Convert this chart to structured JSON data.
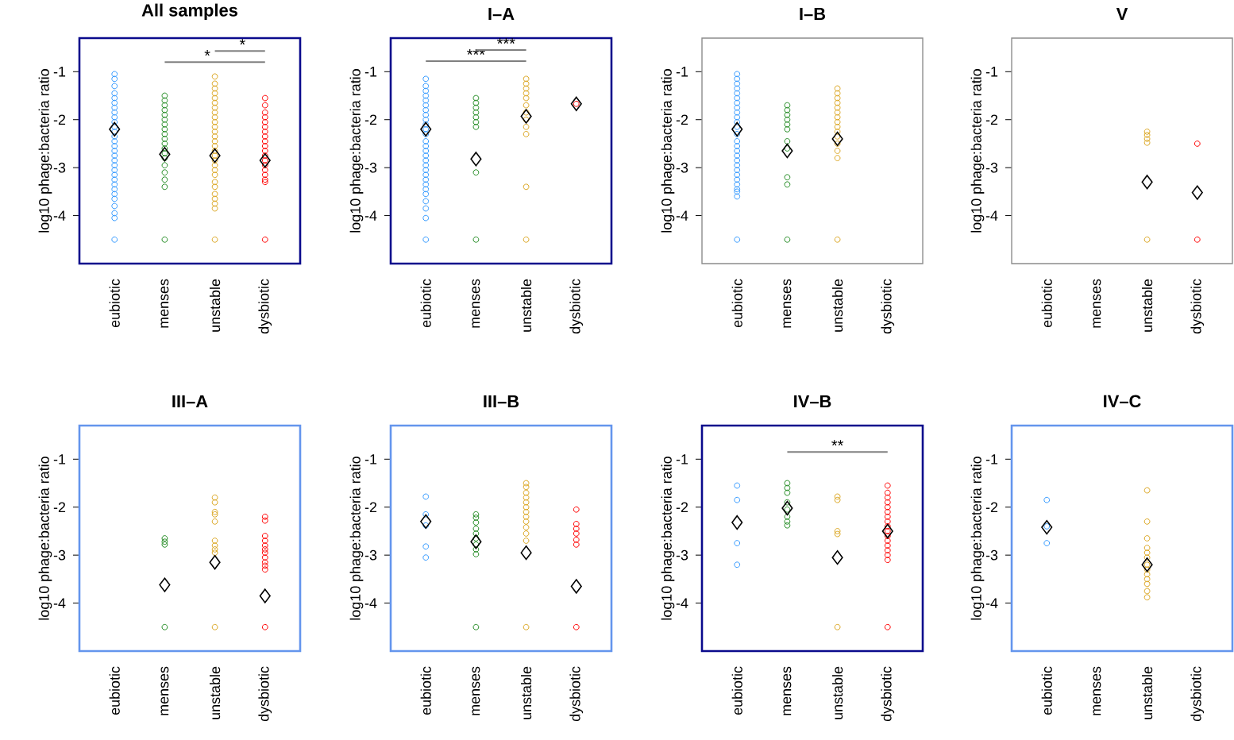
{
  "chart_data": [
    {
      "type": "scatter",
      "title": "All samples",
      "ylabel": "log10 phage:bacteria ratio",
      "categories": [
        "eubiotic",
        "menses",
        "unstable",
        "dysbiotic"
      ],
      "ylim": [
        -5,
        -0.3
      ],
      "yticks": [
        -1,
        -2,
        -3,
        -4
      ],
      "annotations": [
        "*",
        "*"
      ],
      "series": [
        {
          "color": "#3399ff",
          "marker": "circle",
          "x": [
            "eubiotic",
            "eubiotic",
            "eubiotic",
            "eubiotic",
            "eubiotic",
            "eubiotic",
            "eubiotic",
            "eubiotic",
            "eubiotic",
            "eubiotic",
            "eubiotic",
            "eubiotic",
            "eubiotic",
            "eubiotic",
            "eubiotic",
            "eubiotic",
            "eubiotic",
            "eubiotic",
            "eubiotic",
            "eubiotic",
            "eubiotic",
            "eubiotic",
            "eubiotic",
            "eubiotic",
            "eubiotic",
            "eubiotic",
            "eubiotic",
            "eubiotic",
            "eubiotic",
            "eubiotic"
          ],
          "values": [
            -1.05,
            -1.15,
            -1.3,
            -1.45,
            -1.55,
            -1.65,
            -1.75,
            -1.85,
            -1.95,
            -2.05,
            -2.15,
            -2.25,
            -2.35,
            -2.45,
            -2.55,
            -2.65,
            -2.75,
            -2.85,
            -2.95,
            -3.05,
            -3.15,
            -3.25,
            -3.35,
            -3.45,
            -3.55,
            -3.65,
            -3.8,
            -3.95,
            -4.05,
            -4.5
          ]
        },
        {
          "color": "#228b22",
          "marker": "circle",
          "x": [
            "menses",
            "menses",
            "menses",
            "menses",
            "menses",
            "menses",
            "menses",
            "menses",
            "menses",
            "menses",
            "menses",
            "menses",
            "menses",
            "menses",
            "menses",
            "menses",
            "menses",
            "menses",
            "menses"
          ],
          "values": [
            -1.5,
            -1.6,
            -1.7,
            -1.8,
            -1.9,
            -2.0,
            -2.1,
            -2.2,
            -2.3,
            -2.4,
            -2.5,
            -2.6,
            -2.7,
            -2.8,
            -2.95,
            -3.1,
            -3.25,
            -3.4,
            -4.5
          ]
        },
        {
          "color": "#daa520",
          "marker": "circle",
          "x": [
            "unstable",
            "unstable",
            "unstable",
            "unstable",
            "unstable",
            "unstable",
            "unstable",
            "unstable",
            "unstable",
            "unstable",
            "unstable",
            "unstable",
            "unstable",
            "unstable",
            "unstable",
            "unstable",
            "unstable",
            "unstable",
            "unstable",
            "unstable",
            "unstable",
            "unstable",
            "unstable",
            "unstable",
            "unstable",
            "unstable",
            "unstable",
            "unstable"
          ],
          "values": [
            -1.1,
            -1.25,
            -1.35,
            -1.45,
            -1.55,
            -1.65,
            -1.75,
            -1.85,
            -1.95,
            -2.05,
            -2.15,
            -2.25,
            -2.35,
            -2.45,
            -2.55,
            -2.65,
            -2.75,
            -2.85,
            -2.95,
            -3.05,
            -3.15,
            -3.3,
            -3.4,
            -3.55,
            -3.65,
            -3.75,
            -3.85,
            -4.5
          ]
        },
        {
          "color": "#ff0000",
          "marker": "circle",
          "x": [
            "dysbiotic",
            "dysbiotic",
            "dysbiotic",
            "dysbiotic",
            "dysbiotic",
            "dysbiotic",
            "dysbiotic",
            "dysbiotic",
            "dysbiotic",
            "dysbiotic",
            "dysbiotic",
            "dysbiotic",
            "dysbiotic",
            "dysbiotic",
            "dysbiotic",
            "dysbiotic",
            "dysbiotic",
            "dysbiotic",
            "dysbiotic"
          ],
          "values": [
            -1.55,
            -1.7,
            -1.85,
            -1.95,
            -2.05,
            -2.15,
            -2.25,
            -2.35,
            -2.45,
            -2.55,
            -2.65,
            -2.75,
            -2.85,
            -2.95,
            -3.05,
            -3.15,
            -3.25,
            -3.3,
            -4.5
          ]
        },
        {
          "color": "#000000",
          "marker": "diamond",
          "x": [
            "eubiotic",
            "menses",
            "unstable",
            "dysbiotic"
          ],
          "values": [
            -2.2,
            -2.72,
            -2.75,
            -2.85
          ]
        }
      ]
    },
    {
      "type": "scatter",
      "title": "I–A",
      "ylabel": "log10 phage:bacteria ratio",
      "categories": [
        "eubiotic",
        "menses",
        "unstable",
        "dysbiotic"
      ],
      "ylim": [
        -5,
        -0.3
      ],
      "yticks": [
        -1,
        -2,
        -3,
        -4
      ],
      "annotations": [
        "***",
        "***"
      ],
      "series": [
        {
          "color": "#3399ff",
          "marker": "circle",
          "x": [
            "eubiotic",
            "eubiotic",
            "eubiotic",
            "eubiotic",
            "eubiotic",
            "eubiotic",
            "eubiotic",
            "eubiotic",
            "eubiotic",
            "eubiotic",
            "eubiotic",
            "eubiotic",
            "eubiotic",
            "eubiotic",
            "eubiotic",
            "eubiotic",
            "eubiotic",
            "eubiotic",
            "eubiotic",
            "eubiotic",
            "eubiotic",
            "eubiotic",
            "eubiotic",
            "eubiotic",
            "eubiotic",
            "eubiotic",
            "eubiotic",
            "eubiotic"
          ],
          "values": [
            -1.15,
            -1.3,
            -1.4,
            -1.5,
            -1.6,
            -1.7,
            -1.8,
            -1.9,
            -2.0,
            -2.1,
            -2.2,
            -2.3,
            -2.45,
            -2.55,
            -2.65,
            -2.75,
            -2.85,
            -2.95,
            -3.05,
            -3.15,
            -3.25,
            -3.35,
            -3.45,
            -3.55,
            -3.7,
            -3.85,
            -4.05,
            -4.5
          ]
        },
        {
          "color": "#228b22",
          "marker": "circle",
          "x": [
            "menses",
            "menses",
            "menses",
            "menses",
            "menses",
            "menses",
            "menses",
            "menses",
            "menses"
          ],
          "values": [
            -1.55,
            -1.65,
            -1.75,
            -1.85,
            -1.95,
            -2.05,
            -2.15,
            -3.1,
            -4.5
          ]
        },
        {
          "color": "#daa520",
          "marker": "circle",
          "x": [
            "unstable",
            "unstable",
            "unstable",
            "unstable",
            "unstable",
            "unstable",
            "unstable",
            "unstable",
            "unstable",
            "unstable",
            "unstable",
            "unstable"
          ],
          "values": [
            -1.15,
            -1.25,
            -1.35,
            -1.45,
            -1.55,
            -1.7,
            -1.85,
            -2.0,
            -2.15,
            -2.3,
            -3.4,
            -4.5
          ]
        },
        {
          "color": "#ff0000",
          "marker": "circle",
          "x": [
            "dysbiotic"
          ],
          "values": [
            -1.67
          ]
        },
        {
          "color": "#000000",
          "marker": "diamond",
          "x": [
            "eubiotic",
            "menses",
            "unstable",
            "dysbiotic"
          ],
          "values": [
            -2.2,
            -2.82,
            -1.93,
            -1.67
          ]
        }
      ]
    },
    {
      "type": "scatter",
      "title": "I–B",
      "ylabel": "log10 phage:bacteria ratio",
      "categories": [
        "eubiotic",
        "menses",
        "unstable",
        "dysbiotic"
      ],
      "ylim": [
        -5,
        -0.3
      ],
      "yticks": [
        -1,
        -2,
        -3,
        -4
      ],
      "series": [
        {
          "color": "#3399ff",
          "marker": "circle",
          "x": [
            "eubiotic",
            "eubiotic",
            "eubiotic",
            "eubiotic",
            "eubiotic",
            "eubiotic",
            "eubiotic",
            "eubiotic",
            "eubiotic",
            "eubiotic",
            "eubiotic",
            "eubiotic",
            "eubiotic",
            "eubiotic",
            "eubiotic",
            "eubiotic",
            "eubiotic",
            "eubiotic",
            "eubiotic",
            "eubiotic",
            "eubiotic",
            "eubiotic",
            "eubiotic",
            "eubiotic",
            "eubiotic",
            "eubiotic",
            "eubiotic"
          ],
          "values": [
            -1.05,
            -1.15,
            -1.25,
            -1.35,
            -1.45,
            -1.55,
            -1.65,
            -1.75,
            -1.85,
            -1.95,
            -2.05,
            -2.15,
            -2.3,
            -2.45,
            -2.55,
            -2.65,
            -2.75,
            -2.85,
            -2.95,
            -3.05,
            -3.15,
            -3.25,
            -3.35,
            -3.45,
            -3.5,
            -3.6,
            -4.5
          ]
        },
        {
          "color": "#228b22",
          "marker": "circle",
          "x": [
            "menses",
            "menses",
            "menses",
            "menses",
            "menses",
            "menses",
            "menses",
            "menses",
            "menses",
            "menses",
            "menses"
          ],
          "values": [
            -1.7,
            -1.8,
            -1.9,
            -2.0,
            -2.1,
            -2.2,
            -2.45,
            -2.6,
            -3.2,
            -3.35,
            -4.5
          ]
        },
        {
          "color": "#daa520",
          "marker": "circle",
          "x": [
            "unstable",
            "unstable",
            "unstable",
            "unstable",
            "unstable",
            "unstable",
            "unstable",
            "unstable",
            "unstable",
            "unstable",
            "unstable",
            "unstable",
            "unstable",
            "unstable",
            "unstable"
          ],
          "values": [
            -1.35,
            -1.45,
            -1.55,
            -1.65,
            -1.75,
            -1.85,
            -1.95,
            -2.05,
            -2.15,
            -2.25,
            -2.35,
            -2.5,
            -2.65,
            -2.8,
            -4.5
          ]
        },
        {
          "color": "#000000",
          "marker": "diamond",
          "x": [
            "eubiotic",
            "menses",
            "unstable"
          ],
          "values": [
            -2.2,
            -2.65,
            -2.4
          ]
        }
      ]
    },
    {
      "type": "scatter",
      "title": "V",
      "ylabel": "log10 phage:bacteria ratio",
      "categories": [
        "eubiotic",
        "menses",
        "unstable",
        "dysbiotic"
      ],
      "ylim": [
        -5,
        -0.3
      ],
      "yticks": [
        -1,
        -2,
        -3,
        -4
      ],
      "series": [
        {
          "color": "#daa520",
          "marker": "circle",
          "x": [
            "unstable",
            "unstable",
            "unstable",
            "unstable",
            "unstable"
          ],
          "values": [
            -2.25,
            -2.32,
            -2.4,
            -2.48,
            -4.5
          ]
        },
        {
          "color": "#ff0000",
          "marker": "circle",
          "x": [
            "dysbiotic",
            "dysbiotic"
          ],
          "values": [
            -2.5,
            -4.5
          ]
        },
        {
          "color": "#000000",
          "marker": "diamond",
          "x": [
            "unstable",
            "dysbiotic"
          ],
          "values": [
            -3.3,
            -3.52
          ]
        }
      ]
    },
    {
      "type": "scatter",
      "title": "III–A",
      "ylabel": "log10 phage:bacteria ratio",
      "categories": [
        "eubiotic",
        "menses",
        "unstable",
        "dysbiotic"
      ],
      "ylim": [
        -5,
        -0.3
      ],
      "yticks": [
        -1,
        -2,
        -3,
        -4
      ],
      "series": [
        {
          "color": "#228b22",
          "marker": "circle",
          "x": [
            "menses",
            "menses",
            "menses",
            "menses"
          ],
          "values": [
            -2.65,
            -2.72,
            -2.78,
            -4.5
          ]
        },
        {
          "color": "#daa520",
          "marker": "circle",
          "x": [
            "unstable",
            "unstable",
            "unstable",
            "unstable",
            "unstable",
            "unstable",
            "unstable",
            "unstable",
            "unstable",
            "unstable"
          ],
          "values": [
            -1.8,
            -1.9,
            -2.1,
            -2.15,
            -2.3,
            -2.7,
            -2.8,
            -2.88,
            -2.95,
            -4.5
          ]
        },
        {
          "color": "#ff0000",
          "marker": "circle",
          "x": [
            "dysbiotic",
            "dysbiotic",
            "dysbiotic",
            "dysbiotic",
            "dysbiotic",
            "dysbiotic",
            "dysbiotic",
            "dysbiotic",
            "dysbiotic",
            "dysbiotic",
            "dysbiotic",
            "dysbiotic"
          ],
          "values": [
            -2.2,
            -2.28,
            -2.6,
            -2.7,
            -2.8,
            -2.88,
            -2.95,
            -3.05,
            -3.15,
            -3.22,
            -3.3,
            -4.5
          ]
        },
        {
          "color": "#000000",
          "marker": "diamond",
          "x": [
            "menses",
            "unstable",
            "dysbiotic"
          ],
          "values": [
            -3.62,
            -3.15,
            -3.85
          ]
        }
      ]
    },
    {
      "type": "scatter",
      "title": "III–B",
      "ylabel": "log10 phage:bacteria ratio",
      "categories": [
        "eubiotic",
        "menses",
        "unstable",
        "dysbiotic"
      ],
      "ylim": [
        -5,
        -0.3
      ],
      "yticks": [
        -1,
        -2,
        -3,
        -4
      ],
      "series": [
        {
          "color": "#3399ff",
          "marker": "circle",
          "x": [
            "eubiotic",
            "eubiotic",
            "eubiotic",
            "eubiotic",
            "eubiotic"
          ],
          "values": [
            -1.78,
            -2.15,
            -2.38,
            -2.82,
            -3.05
          ]
        },
        {
          "color": "#228b22",
          "marker": "circle",
          "x": [
            "menses",
            "menses",
            "menses",
            "menses",
            "menses",
            "menses",
            "menses",
            "menses",
            "menses",
            "menses"
          ],
          "values": [
            -2.15,
            -2.22,
            -2.32,
            -2.45,
            -2.55,
            -2.65,
            -2.78,
            -2.88,
            -2.98,
            -4.5
          ]
        },
        {
          "color": "#daa520",
          "marker": "circle",
          "x": [
            "unstable",
            "unstable",
            "unstable",
            "unstable",
            "unstable",
            "unstable",
            "unstable",
            "unstable",
            "unstable",
            "unstable",
            "unstable",
            "unstable",
            "unstable"
          ],
          "values": [
            -1.5,
            -1.58,
            -1.7,
            -1.8,
            -1.9,
            -2.0,
            -2.1,
            -2.2,
            -2.3,
            -2.42,
            -2.55,
            -2.7,
            -4.5
          ]
        },
        {
          "color": "#ff0000",
          "marker": "circle",
          "x": [
            "dysbiotic",
            "dysbiotic",
            "dysbiotic",
            "dysbiotic",
            "dysbiotic",
            "dysbiotic",
            "dysbiotic"
          ],
          "values": [
            -2.05,
            -2.35,
            -2.45,
            -2.55,
            -2.68,
            -2.78,
            -4.5
          ]
        },
        {
          "color": "#000000",
          "marker": "diamond",
          "x": [
            "eubiotic",
            "menses",
            "unstable",
            "dysbiotic"
          ],
          "values": [
            -2.3,
            -2.72,
            -2.95,
            -3.65
          ]
        }
      ]
    },
    {
      "type": "scatter",
      "title": "IV–B",
      "ylabel": "log10 phage:bacteria ratio",
      "categories": [
        "eubiotic",
        "menses",
        "unstable",
        "dysbiotic"
      ],
      "ylim": [
        -5,
        -0.3
      ],
      "yticks": [
        -1,
        -2,
        -3,
        -4
      ],
      "annotations": [
        "**"
      ],
      "series": [
        {
          "color": "#3399ff",
          "marker": "circle",
          "x": [
            "eubiotic",
            "eubiotic",
            "eubiotic",
            "eubiotic"
          ],
          "values": [
            -1.55,
            -1.85,
            -2.75,
            -3.2
          ]
        },
        {
          "color": "#228b22",
          "marker": "circle",
          "x": [
            "menses",
            "menses",
            "menses",
            "menses",
            "menses",
            "menses",
            "menses",
            "menses"
          ],
          "values": [
            -1.5,
            -1.6,
            -1.7,
            -1.9,
            -2.05,
            -2.2,
            -2.3,
            -2.38
          ]
        },
        {
          "color": "#daa520",
          "marker": "circle",
          "x": [
            "unstable",
            "unstable",
            "unstable",
            "unstable",
            "unstable"
          ],
          "values": [
            -1.78,
            -1.85,
            -2.5,
            -2.56,
            -4.5
          ]
        },
        {
          "color": "#ff0000",
          "marker": "circle",
          "x": [
            "dysbiotic",
            "dysbiotic",
            "dysbiotic",
            "dysbiotic",
            "dysbiotic",
            "dysbiotic",
            "dysbiotic",
            "dysbiotic",
            "dysbiotic",
            "dysbiotic",
            "dysbiotic",
            "dysbiotic",
            "dysbiotic",
            "dysbiotic",
            "dysbiotic",
            "dysbiotic",
            "dysbiotic"
          ],
          "values": [
            -1.55,
            -1.7,
            -1.8,
            -1.9,
            -2.0,
            -2.1,
            -2.2,
            -2.3,
            -2.4,
            -2.5,
            -2.6,
            -2.7,
            -2.8,
            -2.9,
            -3.0,
            -3.1,
            -4.5
          ]
        },
        {
          "color": "#000000",
          "marker": "diamond",
          "x": [
            "eubiotic",
            "menses",
            "unstable",
            "dysbiotic"
          ],
          "values": [
            -2.32,
            -2.02,
            -3.05,
            -2.5
          ]
        }
      ]
    },
    {
      "type": "scatter",
      "title": "IV–C",
      "ylabel": "log10 phage:bacteria ratio",
      "categories": [
        "eubiotic",
        "menses",
        "unstable",
        "dysbiotic"
      ],
      "ylim": [
        -5,
        -0.3
      ],
      "yticks": [
        -1,
        -2,
        -3,
        -4
      ],
      "series": [
        {
          "color": "#3399ff",
          "marker": "circle",
          "x": [
            "eubiotic",
            "eubiotic",
            "eubiotic"
          ],
          "values": [
            -1.85,
            -2.4,
            -2.75
          ]
        },
        {
          "color": "#daa520",
          "marker": "circle",
          "x": [
            "unstable",
            "unstable",
            "unstable",
            "unstable",
            "unstable",
            "unstable",
            "unstable",
            "unstable",
            "unstable",
            "unstable",
            "unstable",
            "unstable",
            "unstable"
          ],
          "values": [
            -1.65,
            -2.3,
            -2.65,
            -2.85,
            -2.95,
            -3.05,
            -3.2,
            -3.3,
            -3.4,
            -3.5,
            -3.6,
            -3.75,
            -3.88
          ]
        },
        {
          "color": "#000000",
          "marker": "diamond",
          "x": [
            "eubiotic",
            "unstable"
          ],
          "values": [
            -2.42,
            -3.2
          ]
        }
      ]
    }
  ]
}
